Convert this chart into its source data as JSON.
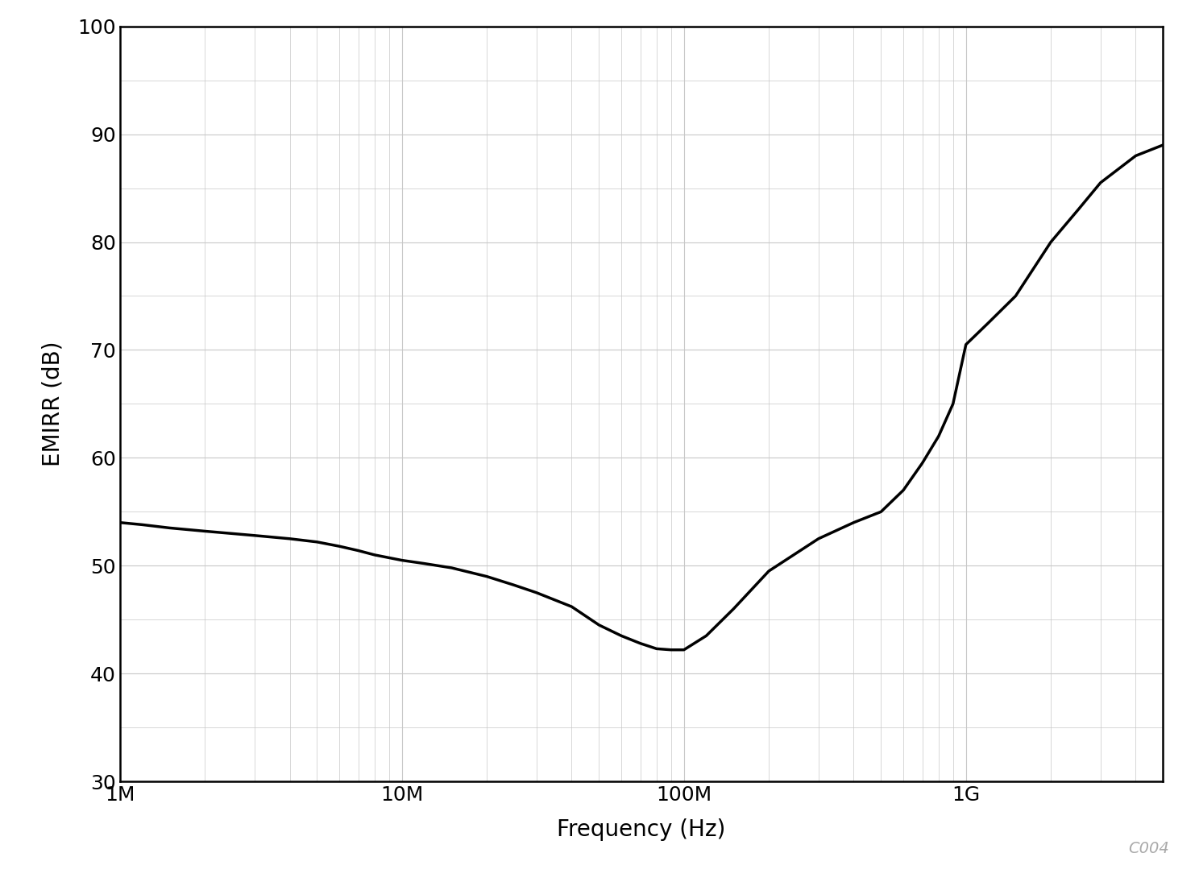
{
  "xlabel": "Frequency (Hz)",
  "ylabel": "EMIRR (dB)",
  "xlim": [
    1000000.0,
    5000000000.0
  ],
  "ylim": [
    30,
    100
  ],
  "yticks": [
    30,
    40,
    50,
    60,
    70,
    80,
    90,
    100
  ],
  "line_color": "#000000",
  "line_width": 2.5,
  "background_color": "#ffffff",
  "grid_color": "#c8c8c8",
  "annotation": "C004",
  "annotation_color": "#aaaaaa",
  "freq_hz": [
    1000000,
    1200000,
    1500000,
    2000000,
    3000000,
    4000000,
    5000000,
    6000000,
    7000000,
    8000000,
    10000000,
    12000000,
    15000000,
    20000000,
    25000000,
    30000000,
    40000000,
    50000000,
    60000000,
    70000000,
    80000000,
    90000000,
    100000000,
    120000000,
    150000000,
    200000000,
    300000000,
    400000000,
    500000000,
    600000000,
    700000000,
    800000000,
    900000000,
    1000000000,
    1200000000,
    1500000000,
    2000000000,
    2500000000,
    3000000000,
    4000000000,
    5000000000
  ],
  "emirr_db": [
    54.0,
    53.8,
    53.5,
    53.2,
    52.8,
    52.5,
    52.2,
    51.8,
    51.4,
    51.0,
    50.5,
    50.2,
    49.8,
    49.0,
    48.2,
    47.5,
    46.2,
    44.5,
    43.5,
    42.8,
    42.3,
    42.2,
    42.2,
    43.5,
    46.0,
    49.5,
    52.5,
    54.0,
    55.0,
    57.0,
    59.5,
    62.0,
    65.0,
    70.5,
    72.5,
    75.0,
    80.0,
    83.0,
    85.5,
    88.0,
    89.0
  ],
  "spine_linewidth": 1.8,
  "xlabel_fontsize": 20,
  "ylabel_fontsize": 20,
  "tick_labelsize": 18,
  "annotation_fontsize": 14
}
